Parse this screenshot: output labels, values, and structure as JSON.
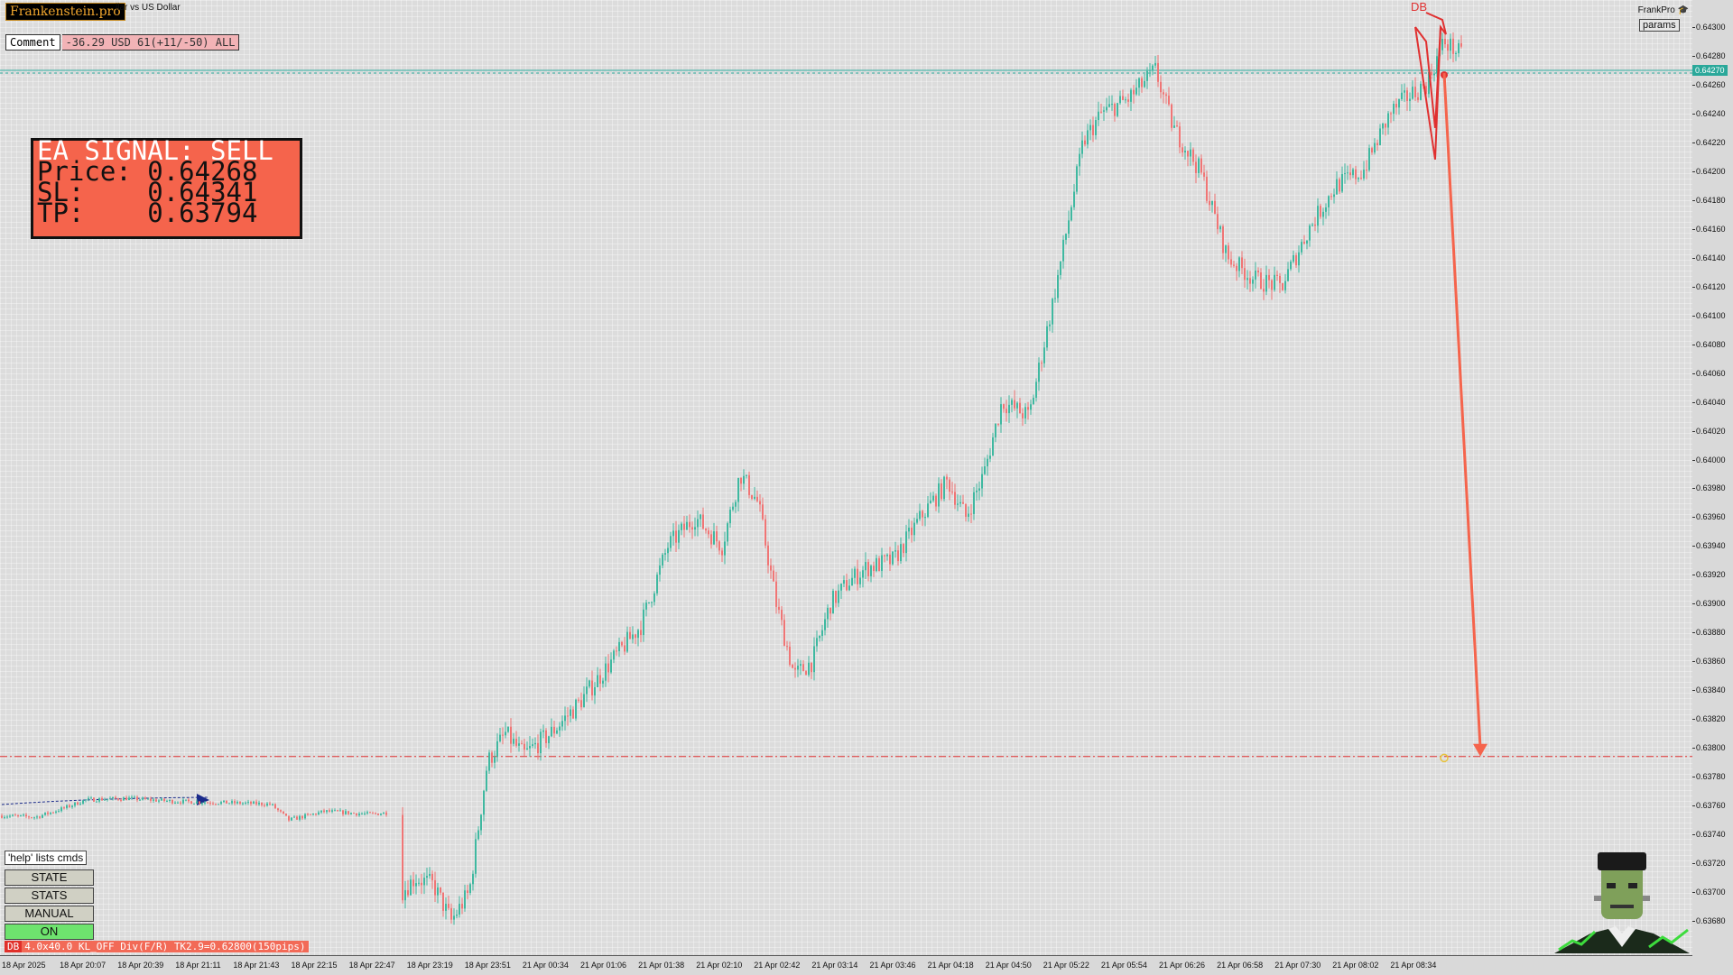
{
  "brand": "Frankenstein.pro",
  "symbol_title": "llar vs US Dollar",
  "comment": {
    "label": "Comment",
    "value": "-36.29 USD 61(+11/-50) ALL"
  },
  "signal": {
    "line1": "EA SIGNAL: SELL",
    "price_label": "Price:",
    "price": "0.64268",
    "sl_label": "SL:",
    "sl": "0.64341",
    "tp_label": "TP:",
    "tp": "0.63794"
  },
  "top_right": {
    "name": "FrankPro",
    "params": "params",
    "price_tag": "0.64270",
    "cap_icon": "graduation-cap-icon"
  },
  "pattern_label": "DB",
  "side_buttons": {
    "help": "'help' lists cmds",
    "state": "STATE",
    "stats": "STATS",
    "manual": "MANUAL",
    "on": "ON"
  },
  "status_bar": {
    "tag": "DB",
    "text": "4.0x40.0 KL_OFF Div(F/R) TK2.9=0.62800(150pips)"
  },
  "colors": {
    "bull": "#3fb8a0",
    "bear": "#f07575",
    "signal_bg": "#f5644c",
    "tp_line": "#e03030",
    "current_line": "#2aa89a",
    "on_button": "#6ee36e"
  },
  "price_axis": [
    "0.64300",
    "0.64280",
    "0.64260",
    "0.64240",
    "0.64220",
    "0.64200",
    "0.64180",
    "0.64160",
    "0.64140",
    "0.64120",
    "0.64100",
    "0.64080",
    "0.64060",
    "0.64040",
    "0.64020",
    "0.64000",
    "0.63980",
    "0.63960",
    "0.63940",
    "0.63920",
    "0.63900",
    "0.63880",
    "0.63860",
    "0.63840",
    "0.63820",
    "0.63800",
    "0.63780",
    "0.63760",
    "0.63740",
    "0.63720",
    "0.63700",
    "0.63680"
  ],
  "time_axis": [
    "18 Apr 2025",
    "18 Apr 20:07",
    "18 Apr 20:39",
    "18 Apr 21:11",
    "18 Apr 21:43",
    "18 Apr 22:15",
    "18 Apr 22:47",
    "18 Apr 23:19",
    "18 Apr 23:51",
    "21 Apr 00:34",
    "21 Apr 01:06",
    "21 Apr 01:38",
    "21 Apr 02:10",
    "21 Apr 02:42",
    "21 Apr 03:14",
    "21 Apr 03:46",
    "21 Apr 04:18",
    "21 Apr 04:50",
    "21 Apr 05:22",
    "21 Apr 05:54",
    "21 Apr 06:26",
    "21 Apr 06:58",
    "21 Apr 07:30",
    "21 Apr 08:02",
    "21 Apr 08:34"
  ],
  "chart_data": {
    "type": "candlestick",
    "ylim": [
      0.63665,
      0.6431
    ],
    "lines": {
      "current_price": 0.6427,
      "tp_line": 0.63794
    },
    "path_anchors": [
      [
        0,
        0.63753
      ],
      [
        40,
        0.63752
      ],
      [
        70,
        0.63758
      ],
      [
        95,
        0.63764
      ],
      [
        140,
        0.63765
      ],
      [
        190,
        0.63763
      ],
      [
        250,
        0.63762
      ],
      [
        300,
        0.63761
      ],
      [
        320,
        0.6375
      ],
      [
        360,
        0.63756
      ],
      [
        410,
        0.63754
      ],
      [
        428,
        0.63755
      ],
      [
        445,
        0.637
      ],
      [
        460,
        0.6371
      ],
      [
        480,
        0.63705
      ],
      [
        500,
        0.6368
      ],
      [
        520,
        0.637
      ],
      [
        540,
        0.6379
      ],
      [
        560,
        0.6381
      ],
      [
        580,
        0.63795
      ],
      [
        610,
        0.6381
      ],
      [
        640,
        0.6383
      ],
      [
        680,
        0.63862
      ],
      [
        710,
        0.63885
      ],
      [
        740,
        0.6394
      ],
      [
        770,
        0.6396
      ],
      [
        800,
        0.6394
      ],
      [
        820,
        0.6399
      ],
      [
        840,
        0.6397
      ],
      [
        860,
        0.639
      ],
      [
        880,
        0.6385
      ],
      [
        900,
        0.6386
      ],
      [
        920,
        0.639
      ],
      [
        940,
        0.63915
      ],
      [
        960,
        0.63925
      ],
      [
        990,
        0.6393
      ],
      [
        1020,
        0.6396
      ],
      [
        1050,
        0.63985
      ],
      [
        1070,
        0.6396
      ],
      [
        1090,
        0.6399
      ],
      [
        1110,
        0.6404
      ],
      [
        1140,
        0.6403
      ],
      [
        1170,
        0.6412
      ],
      [
        1200,
        0.6422
      ],
      [
        1220,
        0.6424
      ],
      [
        1250,
        0.6425
      ],
      [
        1280,
        0.6427
      ],
      [
        1300,
        0.6423
      ],
      [
        1330,
        0.642
      ],
      [
        1360,
        0.6414
      ],
      [
        1390,
        0.64125
      ],
      [
        1420,
        0.6412
      ],
      [
        1450,
        0.6416
      ],
      [
        1480,
        0.6419
      ],
      [
        1510,
        0.642
      ],
      [
        1540,
        0.6424
      ],
      [
        1560,
        0.64252
      ],
      [
        1580,
        0.6426
      ],
      [
        1600,
        0.6429
      ],
      [
        1620,
        0.6428
      ]
    ],
    "pattern_points": [
      [
        1568,
        0.643
      ],
      [
        1580,
        0.6429
      ],
      [
        1590,
        0.6423
      ],
      [
        1596,
        0.643
      ],
      [
        1602,
        0.64295
      ],
      [
        1598,
        0.64305
      ],
      [
        1580,
        0.6431
      ]
    ],
    "arrow": {
      "from": [
        1600,
        0.64268
      ],
      "to": [
        1640,
        0.63794
      ]
    },
    "marker": [
      1600,
      0.63793
    ]
  }
}
